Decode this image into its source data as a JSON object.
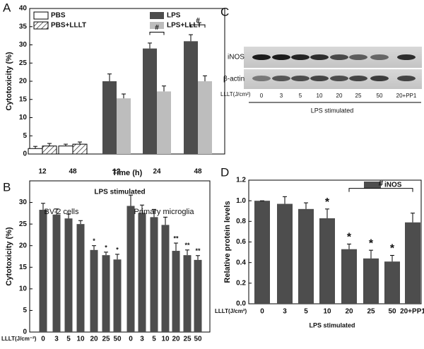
{
  "panel_labels": [
    "A",
    "B",
    "C",
    "D"
  ],
  "chart_data": [
    {
      "type": "bar",
      "ylabel": "Cytotoxicity (%)",
      "xlabel": "Time (h)",
      "categories": [
        "12",
        "48",
        "12",
        "24",
        "48"
      ],
      "series": [
        {
          "name": "PBS",
          "color": "#ffffff",
          "values": [
            1.5,
            2.2,
            null,
            null,
            null
          ],
          "errors": [
            0.6,
            0.5,
            null,
            null,
            null
          ]
        },
        {
          "name": "PBS+LLLT",
          "color": "#ffffff",
          "hatch": true,
          "values": [
            2.2,
            2.7,
            null,
            null,
            null
          ],
          "errors": [
            0.7,
            0.6,
            null,
            null,
            null
          ]
        },
        {
          "name": "LPS",
          "color": "#4d4d4d",
          "values": [
            null,
            null,
            20,
            29,
            31
          ],
          "errors": [
            null,
            null,
            2,
            1.5,
            1.8
          ]
        },
        {
          "name": "LPS+LLLT",
          "color": "#bdbdbd",
          "values": [
            null,
            null,
            15.3,
            17.2,
            20
          ],
          "errors": [
            null,
            null,
            1.2,
            1.5,
            1.5
          ]
        }
      ],
      "annotations": [
        "#",
        "#"
      ],
      "ylim": [
        0,
        40
      ],
      "yticks": [
        0,
        5,
        10,
        15,
        20,
        25,
        30,
        35,
        40
      ],
      "legend": true
    },
    {
      "type": "bar",
      "title": "LPS stimulated",
      "ylabel": "Cytotoxicity (%)",
      "xlabel": "LLLT(J/cm⁻²)",
      "categories": [
        "0",
        "3",
        "5",
        "10",
        "20",
        "25",
        "50"
      ],
      "series": [
        {
          "name": "BV-2 cells",
          "color": "#4d4d4d",
          "values": [
            28.3,
            27.2,
            26.3,
            25,
            19,
            17.8,
            16.8
          ],
          "errors": [
            1.5,
            1.3,
            1,
            0.8,
            1,
            0.7,
            1.2
          ],
          "significance": [
            null,
            null,
            null,
            null,
            "*",
            "*",
            "*"
          ]
        },
        {
          "name": "Primary microglia",
          "color": "#4d4d4d",
          "values": [
            29.2,
            27.6,
            26.6,
            24.8,
            18.8,
            17.8,
            16.7
          ],
          "errors": [
            2.5,
            1.8,
            1.8,
            1.8,
            1.8,
            1.2,
            1
          ],
          "significance": [
            null,
            null,
            null,
            null,
            "**",
            "**",
            "**"
          ]
        }
      ],
      "ylim": [
        0,
        35
      ],
      "yticks": [
        0,
        5,
        10,
        15,
        20,
        25,
        30
      ],
      "legend": false
    },
    {
      "type": "bar",
      "ylabel": "Relative protein levels",
      "xlabel": "LLLT(J/cm²)",
      "group_label": "LPS stimulated",
      "categories": [
        "0",
        "3",
        "5",
        "10",
        "20",
        "25",
        "50",
        "20+PP1"
      ],
      "series": [
        {
          "name": "iNOS",
          "color": "#4d4d4d",
          "values": [
            1.0,
            0.97,
            0.92,
            0.83,
            0.53,
            0.44,
            0.41,
            0.79
          ],
          "errors": [
            0,
            0.07,
            0.06,
            0.09,
            0.05,
            0.08,
            0.06,
            0.09
          ],
          "significance": [
            null,
            null,
            null,
            "*",
            "*",
            "*",
            "*",
            null
          ]
        }
      ],
      "annotations": [
        "#"
      ],
      "ylim": [
        0,
        1.2
      ],
      "yticks": [
        {
          "value": 0,
          "label": "0.0"
        },
        0.2,
        0.4,
        0.6,
        0.8,
        {
          "value": 1,
          "label": "1.0"
        },
        1.2
      ],
      "legend": true
    }
  ],
  "blot": {
    "rows": [
      "iNOS",
      "β-actin"
    ],
    "axis_label": "LLLT(J/cm²)",
    "lanes": [
      "0",
      "3",
      "5",
      "10",
      "20",
      "25",
      "50",
      "20+PP1"
    ],
    "group_label": "LPS stimulated"
  }
}
